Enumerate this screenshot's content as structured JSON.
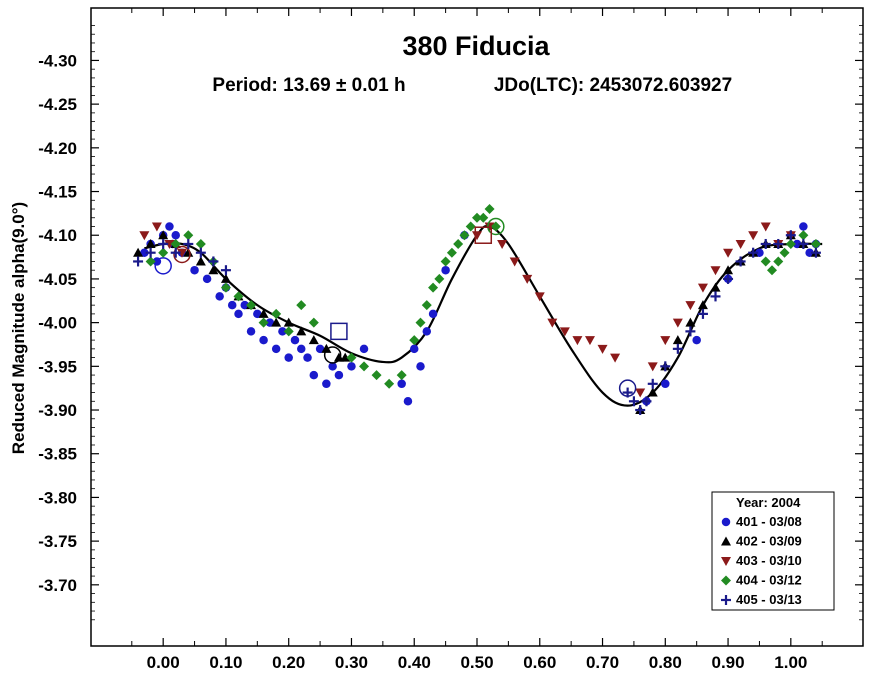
{
  "chart_data": {
    "type": "scatter",
    "title": "380 Fiducia",
    "subtitle_period": "Period: 13.69 ± 0.01 h",
    "subtitle_epoch": "JDo(LTC): 2453072.603927",
    "ylabel": "Reduced Magnitude alpha(9.0°)",
    "xlabel": "",
    "xlim": [
      -0.115,
      1.115
    ],
    "ylim": [
      -4.36,
      -3.63
    ],
    "y_inverted": true,
    "grid": false,
    "legend_position": "bottom-right",
    "x_ticks": [
      0.0,
      0.1,
      0.2,
      0.3,
      0.4,
      0.5,
      0.6,
      0.7,
      0.8,
      0.9,
      1.0
    ],
    "x_tick_labels": [
      "0.00",
      "0.10",
      "0.20",
      "0.30",
      "0.40",
      "0.50",
      "0.60",
      "0.70",
      "0.80",
      "0.90",
      "1.00"
    ],
    "y_ticks": [
      -4.3,
      -4.25,
      -4.2,
      -4.15,
      -4.1,
      -4.05,
      -4.0,
      -3.95,
      -3.9,
      -3.85,
      -3.8,
      -3.75,
      -3.7
    ],
    "y_tick_labels": [
      "-4.30",
      "-4.25",
      "-4.20",
      "-4.15",
      "-4.10",
      "-4.05",
      "-4.00",
      "-3.95",
      "-3.90",
      "-3.85",
      "-3.80",
      "-3.75",
      "-3.70"
    ],
    "legend_title": "Year: 2004",
    "series": [
      {
        "name": "401 - 03/08",
        "marker": "circle",
        "color": "#1a1acc",
        "x": [
          -0.03,
          -0.02,
          -0.01,
          0.0,
          0.01,
          0.015,
          0.02,
          0.03,
          0.05,
          0.07,
          0.09,
          0.1,
          0.11,
          0.12,
          0.13,
          0.14,
          0.15,
          0.16,
          0.17,
          0.18,
          0.19,
          0.2,
          0.21,
          0.22,
          0.23,
          0.24,
          0.25,
          0.26,
          0.27,
          0.28,
          0.3,
          0.32,
          0.38,
          0.39,
          0.4,
          0.41,
          0.42,
          0.43,
          0.45,
          0.48,
          0.77,
          0.8,
          0.85,
          0.9,
          0.95,
          1.0,
          1.01,
          1.02,
          1.03,
          1.04
        ],
        "y": [
          -4.08,
          -4.09,
          -4.07,
          -4.1,
          -4.11,
          -4.09,
          -4.1,
          -4.08,
          -4.06,
          -4.05,
          -4.03,
          -4.04,
          -4.02,
          -4.01,
          -4.02,
          -3.99,
          -4.01,
          -3.98,
          -4.0,
          -3.97,
          -3.99,
          -3.96,
          -3.98,
          -3.97,
          -3.96,
          -3.94,
          -3.97,
          -3.93,
          -3.95,
          -3.94,
          -3.95,
          -3.97,
          -3.93,
          -3.91,
          -3.97,
          -3.95,
          -3.99,
          -4.01,
          -4.06,
          -4.1,
          -3.91,
          -3.93,
          -3.98,
          -4.05,
          -4.08,
          -4.1,
          -4.09,
          -4.11,
          -4.08,
          -4.09
        ],
        "open_marker": {
          "x": 0.0,
          "y": -4.065
        }
      },
      {
        "name": "402 - 03/09",
        "marker": "triangle-up",
        "color": "#000000",
        "x": [
          -0.04,
          -0.02,
          0.0,
          0.02,
          0.04,
          0.06,
          0.08,
          0.1,
          0.12,
          0.14,
          0.16,
          0.18,
          0.2,
          0.22,
          0.24,
          0.26,
          0.28,
          0.29,
          0.76,
          0.78,
          0.8,
          0.82,
          0.84,
          0.86,
          0.88,
          0.9,
          0.92,
          0.94,
          0.96,
          0.98,
          1.0,
          1.02,
          1.04
        ],
        "y": [
          -4.08,
          -4.09,
          -4.1,
          -4.09,
          -4.08,
          -4.07,
          -4.06,
          -4.05,
          -4.03,
          -4.02,
          -4.01,
          -4.0,
          -4.0,
          -3.99,
          -3.98,
          -3.97,
          -3.96,
          -3.96,
          -3.9,
          -3.92,
          -3.95,
          -3.98,
          -4.0,
          -4.02,
          -4.04,
          -4.06,
          -4.07,
          -4.08,
          -4.09,
          -4.09,
          -4.1,
          -4.09,
          -4.08
        ],
        "open_marker": {
          "x": 0.27,
          "y": -3.963
        }
      },
      {
        "name": "403 - 03/10",
        "marker": "triangle-down",
        "color": "#8b1a1a",
        "x": [
          -0.03,
          -0.01,
          0.01,
          0.03,
          0.5,
          0.52,
          0.54,
          0.56,
          0.58,
          0.6,
          0.62,
          0.64,
          0.66,
          0.68,
          0.7,
          0.72,
          0.76,
          0.78,
          0.8,
          0.82,
          0.84,
          0.86,
          0.88,
          0.9,
          0.92,
          0.94,
          0.96,
          0.98,
          1.0
        ],
        "y": [
          -4.1,
          -4.11,
          -4.09,
          -4.08,
          -4.1,
          -4.11,
          -4.09,
          -4.07,
          -4.05,
          -4.03,
          -4.0,
          -3.99,
          -3.98,
          -3.98,
          -3.97,
          -3.96,
          -3.92,
          -3.95,
          -3.98,
          -4.0,
          -4.02,
          -4.04,
          -4.06,
          -4.08,
          -4.09,
          -4.1,
          -4.11,
          -4.09,
          -4.1
        ],
        "open_marker": {
          "x": 0.03,
          "y": -4.078
        }
      },
      {
        "name": "404 - 03/12",
        "marker": "diamond",
        "color": "#228b22",
        "x": [
          -0.02,
          0.0,
          0.02,
          0.04,
          0.06,
          0.08,
          0.1,
          0.12,
          0.14,
          0.16,
          0.18,
          0.2,
          0.22,
          0.24,
          0.3,
          0.32,
          0.34,
          0.36,
          0.38,
          0.4,
          0.41,
          0.42,
          0.43,
          0.44,
          0.45,
          0.46,
          0.47,
          0.48,
          0.49,
          0.5,
          0.51,
          0.52,
          0.53,
          0.96,
          0.97,
          0.98,
          0.99,
          1.0,
          1.02,
          1.04
        ],
        "y": [
          -4.07,
          -4.08,
          -4.09,
          -4.1,
          -4.09,
          -4.07,
          -4.04,
          -4.03,
          -4.02,
          -4.0,
          -4.01,
          -3.99,
          -4.02,
          -4.0,
          -3.96,
          -3.95,
          -3.94,
          -3.93,
          -3.94,
          -3.98,
          -4.0,
          -4.02,
          -4.04,
          -4.05,
          -4.07,
          -4.08,
          -4.09,
          -4.1,
          -4.11,
          -4.12,
          -4.12,
          -4.13,
          -4.11,
          -4.07,
          -4.06,
          -4.07,
          -4.08,
          -4.09,
          -4.1,
          -4.09
        ],
        "open_marker": {
          "x": 0.53,
          "y": -4.11
        }
      },
      {
        "name": "405 - 03/13",
        "marker": "plus",
        "color": "#1a1a8b",
        "x": [
          -0.04,
          -0.02,
          0.0,
          0.02,
          0.04,
          0.06,
          0.08,
          0.1,
          0.74,
          0.75,
          0.76,
          0.77,
          0.78,
          0.8,
          0.82,
          0.84,
          0.86,
          0.88,
          0.9,
          0.92,
          0.94,
          0.96,
          0.98,
          1.0,
          1.02,
          1.04
        ],
        "y": [
          -4.07,
          -4.08,
          -4.09,
          -4.08,
          -4.09,
          -4.08,
          -4.07,
          -4.06,
          -3.92,
          -3.91,
          -3.9,
          -3.91,
          -3.93,
          -3.95,
          -3.97,
          -3.99,
          -4.01,
          -4.03,
          -4.05,
          -4.07,
          -4.08,
          -4.09,
          -4.09,
          -4.1,
          -4.09,
          -4.08
        ],
        "open_marker": {
          "x": 0.74,
          "y": -3.925
        }
      }
    ],
    "fit_curve": {
      "name": "",
      "color": "#000000",
      "x": [
        -0.03,
        0.0,
        0.03,
        0.06,
        0.1,
        0.15,
        0.2,
        0.25,
        0.3,
        0.35,
        0.38,
        0.42,
        0.46,
        0.5,
        0.52,
        0.55,
        0.6,
        0.65,
        0.7,
        0.74,
        0.78,
        0.82,
        0.86,
        0.9,
        0.95,
        1.0,
        1.05
      ],
      "y": [
        -4.085,
        -4.09,
        -4.09,
        -4.08,
        -4.05,
        -4.02,
        -4.0,
        -3.985,
        -3.965,
        -3.955,
        -3.96,
        -3.99,
        -4.05,
        -4.1,
        -4.11,
        -4.09,
        -4.03,
        -3.97,
        -3.92,
        -3.905,
        -3.92,
        -3.96,
        -4.02,
        -4.06,
        -4.085,
        -4.09,
        -4.09
      ]
    },
    "open_square_markers": [
      {
        "series": "402 - 03/09",
        "x": 0.28,
        "y": -3.99,
        "color": "#1a1a8b"
      },
      {
        "series": "403 - 03/10",
        "x": 0.51,
        "y": -4.1,
        "color": "#8b1a1a"
      }
    ]
  }
}
